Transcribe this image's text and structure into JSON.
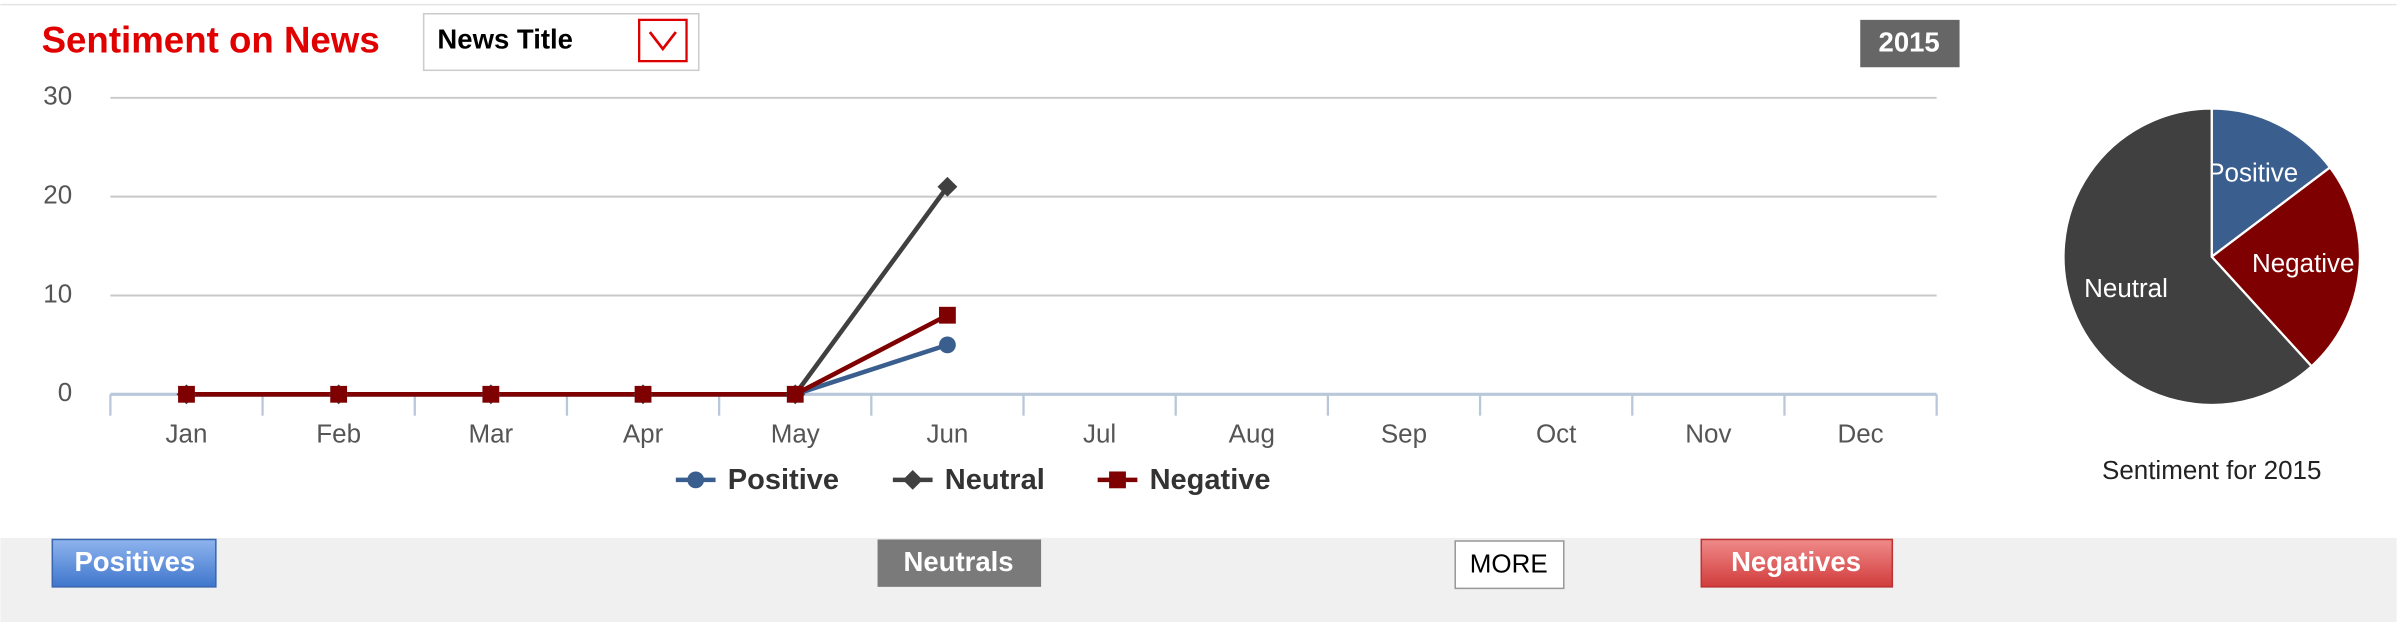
{
  "header": {
    "title": "Sentiment on News",
    "dropdown": "News Title",
    "year": "2015"
  },
  "chart_data": [
    {
      "type": "line",
      "categories": [
        "Jan",
        "Feb",
        "Mar",
        "Apr",
        "May",
        "Jun",
        "Jul",
        "Aug",
        "Sep",
        "Oct",
        "Nov",
        "Dec"
      ],
      "series": [
        {
          "name": "Positive",
          "color": "#3a5f8f",
          "marker": "circle",
          "values": [
            0,
            0,
            0,
            0,
            0,
            5,
            null,
            null,
            null,
            null,
            null,
            null
          ]
        },
        {
          "name": "Neutral",
          "color": "#404040",
          "marker": "diamond",
          "values": [
            0,
            0,
            0,
            0,
            0,
            21,
            null,
            null,
            null,
            null,
            null,
            null
          ]
        },
        {
          "name": "Negative",
          "color": "#7f0000",
          "marker": "square",
          "values": [
            0,
            0,
            0,
            0,
            0,
            8,
            null,
            null,
            null,
            null,
            null,
            null
          ]
        }
      ],
      "ylim": [
        0,
        30
      ],
      "yticks": [
        0,
        10,
        20,
        30
      ],
      "grid": true,
      "legend": "bottom"
    },
    {
      "type": "pie",
      "title": "Sentiment for 2015",
      "labels": [
        "Positive",
        "Negative",
        "Neutral"
      ],
      "values": [
        5,
        8,
        21
      ],
      "colors": [
        "#3a5f8f",
        "#7f0000",
        "#404040"
      ]
    }
  ],
  "buttons": [
    "Positives",
    "Neutrals",
    "MORE",
    "Negatives"
  ]
}
